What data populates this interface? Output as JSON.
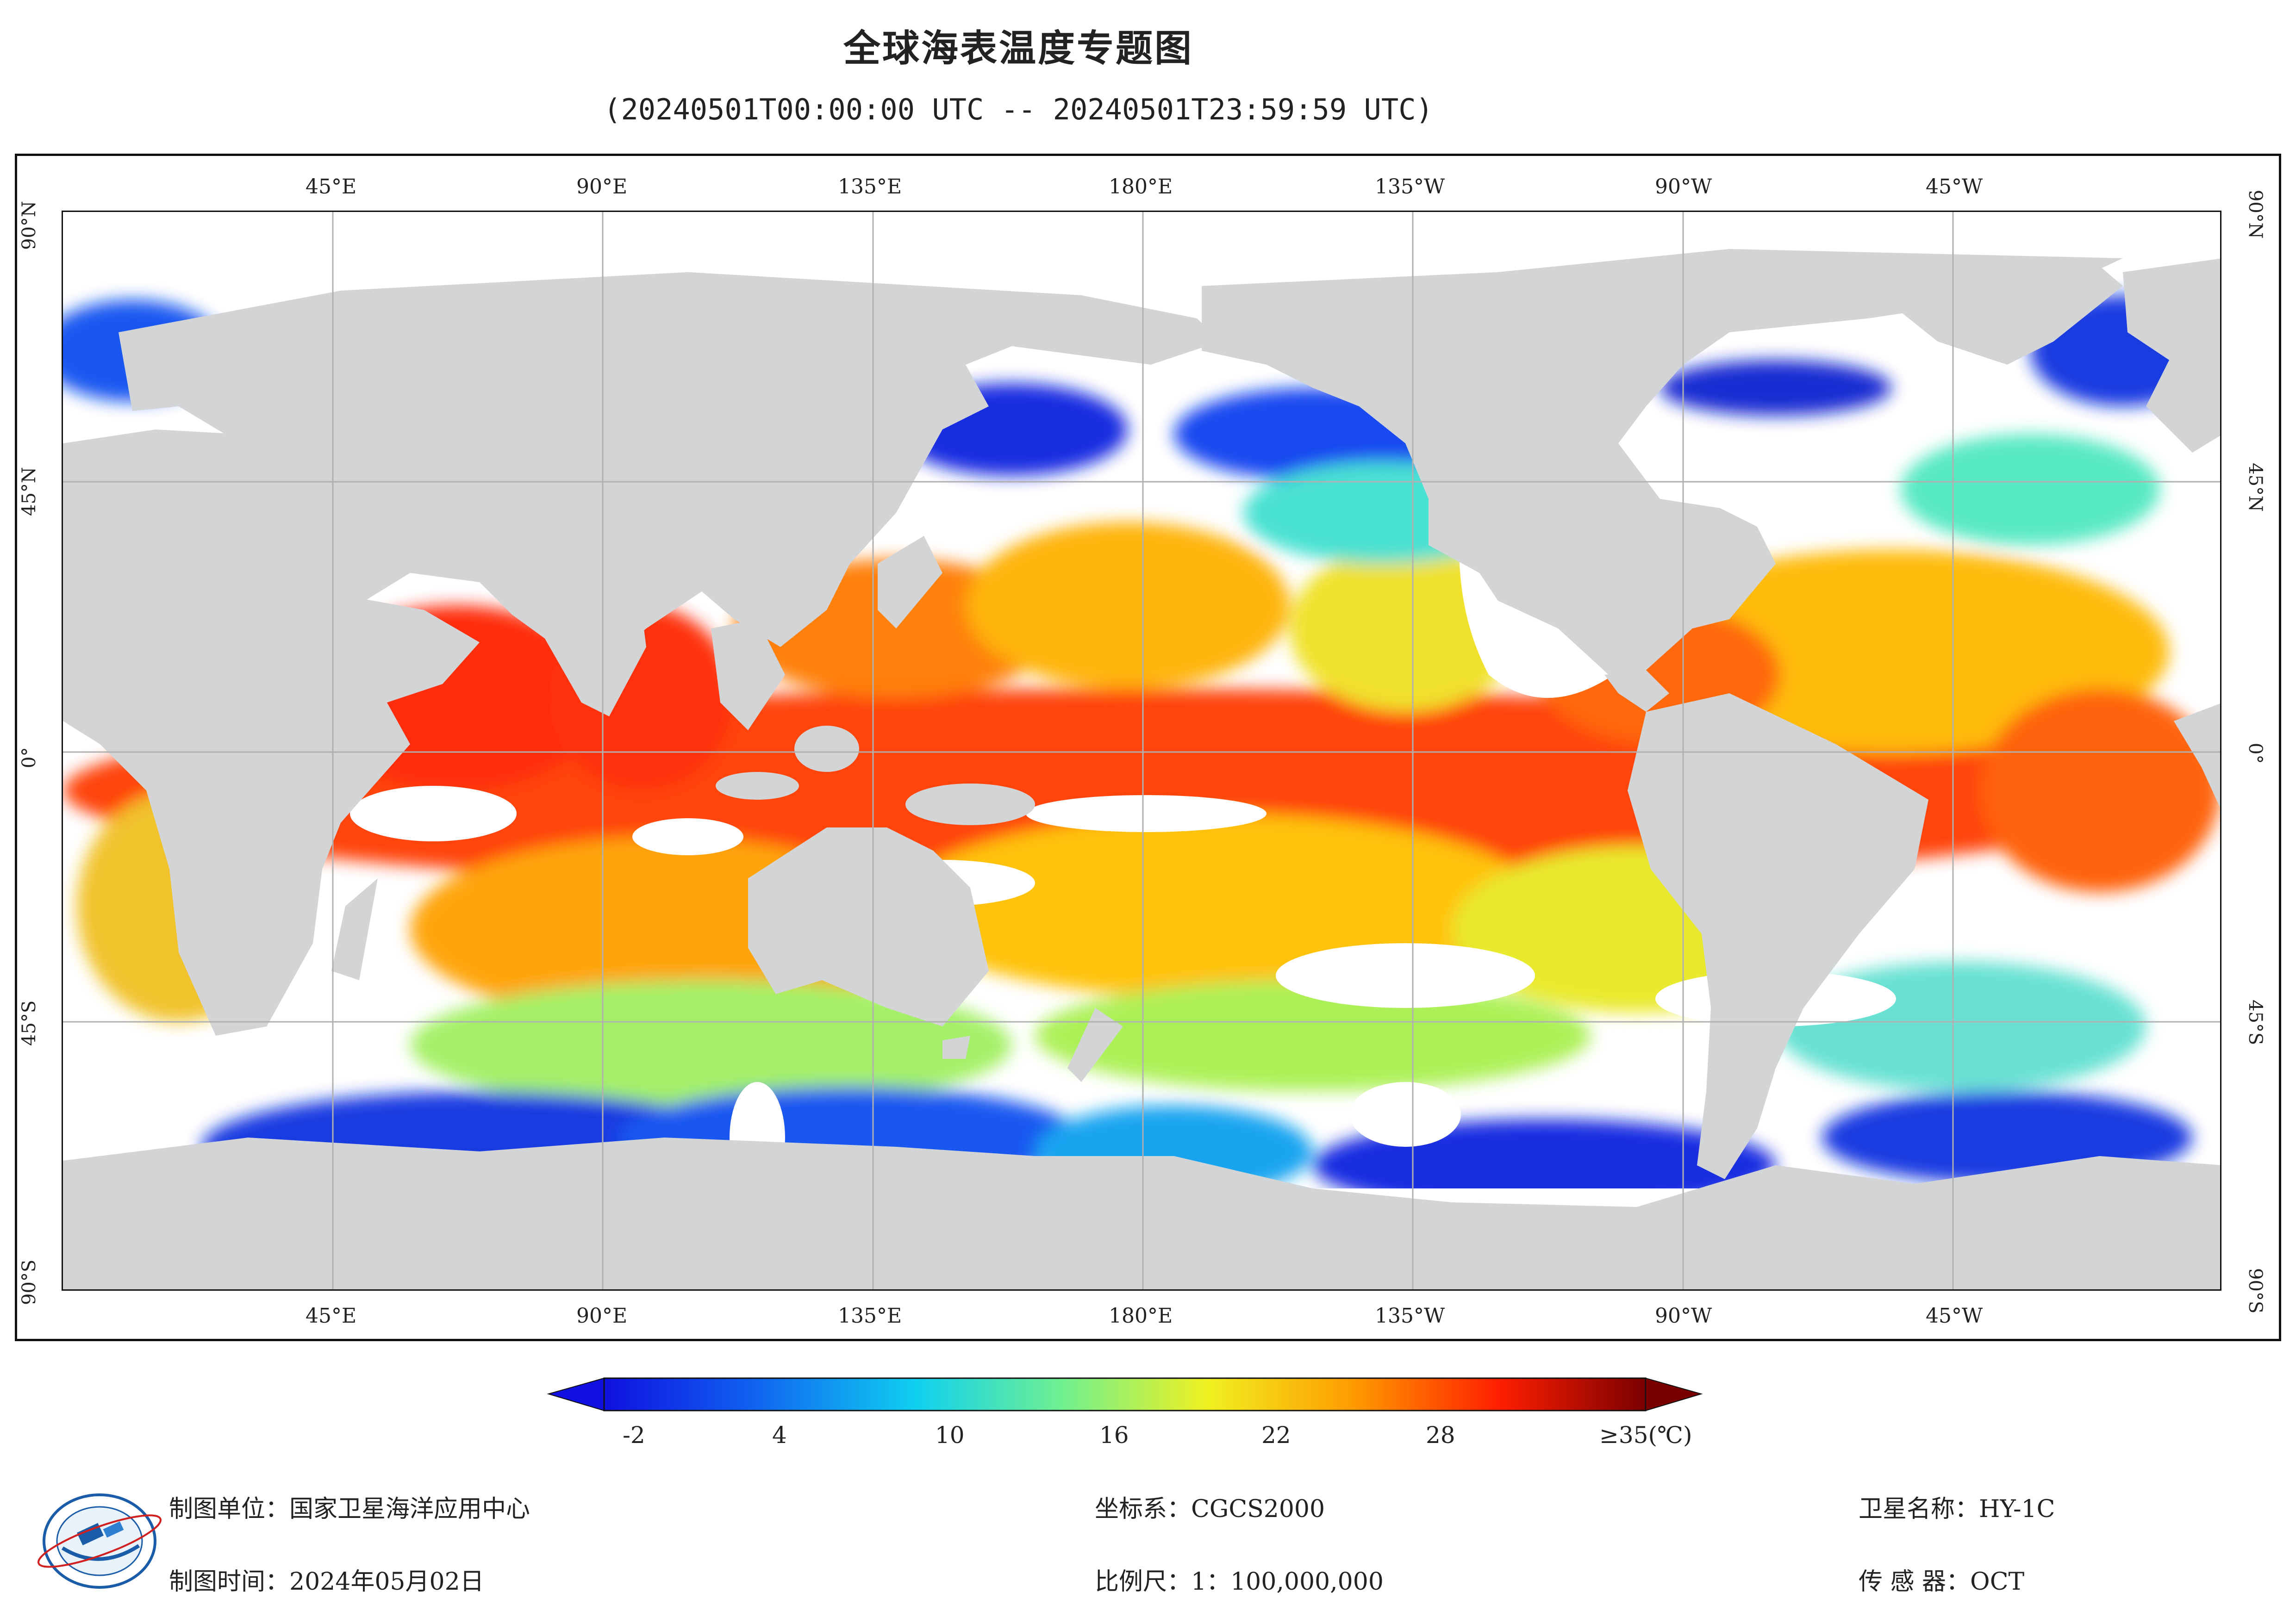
{
  "title": "全球海表温度专题图",
  "time_range": "(20240501T00:00:00 UTC -- 20240501T23:59:59 UTC)",
  "longitude_labels": [
    "45°E",
    "90°E",
    "135°E",
    "180°E",
    "135°W",
    "90°W",
    "45°W"
  ],
  "latitude_labels": [
    "90°N",
    "45°N",
    "0°",
    "45°S",
    "90°S"
  ],
  "legend": {
    "ticks": [
      "-2",
      "4",
      "10",
      "16",
      "22",
      "28",
      "≥35(℃)"
    ],
    "colors": [
      "#1010e0",
      "#1060f0",
      "#10c0f0",
      "#50f0b0",
      "#e0f020",
      "#ff9a00",
      "#ff1e00",
      "#7a0000"
    ]
  },
  "footer": {
    "unit": "制图单位：国家卫星海洋应用中心",
    "date": "制图时间：2024年05月02日",
    "crs": "坐标系：CGCS2000",
    "scale": "比例尺：1：100,000,000",
    "satellite": "卫星名称：HY-1C",
    "sensor": "传  感  器：OCT"
  },
  "colors": {
    "land": "#d3d4d6",
    "no_data": "#ffffff",
    "grid": "#b0b0b0"
  }
}
